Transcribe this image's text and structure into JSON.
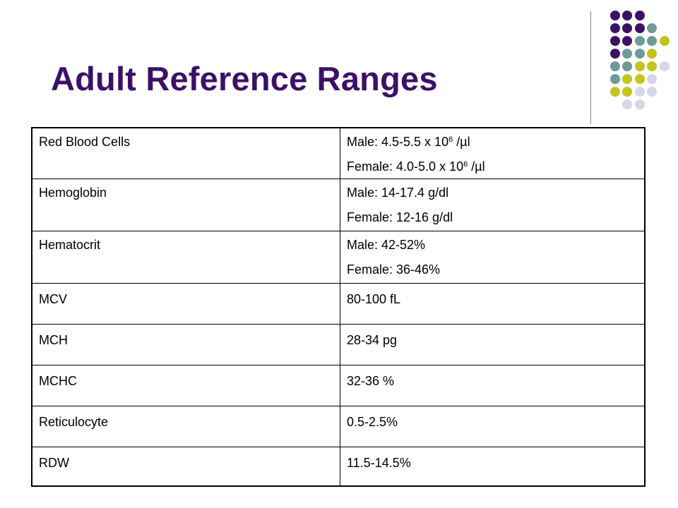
{
  "slide": {
    "title": "Adult Reference Ranges"
  },
  "colors": {
    "title": "#3d1068",
    "dot_purple": "#3d1068",
    "dot_teal": "#6f9a9a",
    "dot_olive": "#c4c41c",
    "dot_lavender": "#d6d6e6"
  },
  "table": {
    "rows": [
      {
        "name": "Red Blood Cells",
        "male": {
          "prefix": "Male:    4.5-5.5 x 10",
          "exp": "6",
          "suffix": " /µl"
        },
        "female": {
          "prefix": "Female: 4.0-5.0  x 10",
          "exp": "6",
          "suffix": " /µl"
        }
      },
      {
        "name": "Hemoglobin",
        "male": "Male:    14-17.4 g/dl",
        "female": "Female: 12-16 g/dl"
      },
      {
        "name": "Hematocrit",
        "male": "Male:     42-52%",
        "female": "Female:  36-46%"
      },
      {
        "name": "MCV",
        "value": "80-100 fL"
      },
      {
        "name": "MCH",
        "value": "28-34 pg"
      },
      {
        "name": "MCHC",
        "value": "32-36 %"
      },
      {
        "name": "Reticulocyte",
        "value": "0.5-2.5%"
      },
      {
        "name": "RDW",
        "value": "11.5-14.5%"
      }
    ]
  }
}
